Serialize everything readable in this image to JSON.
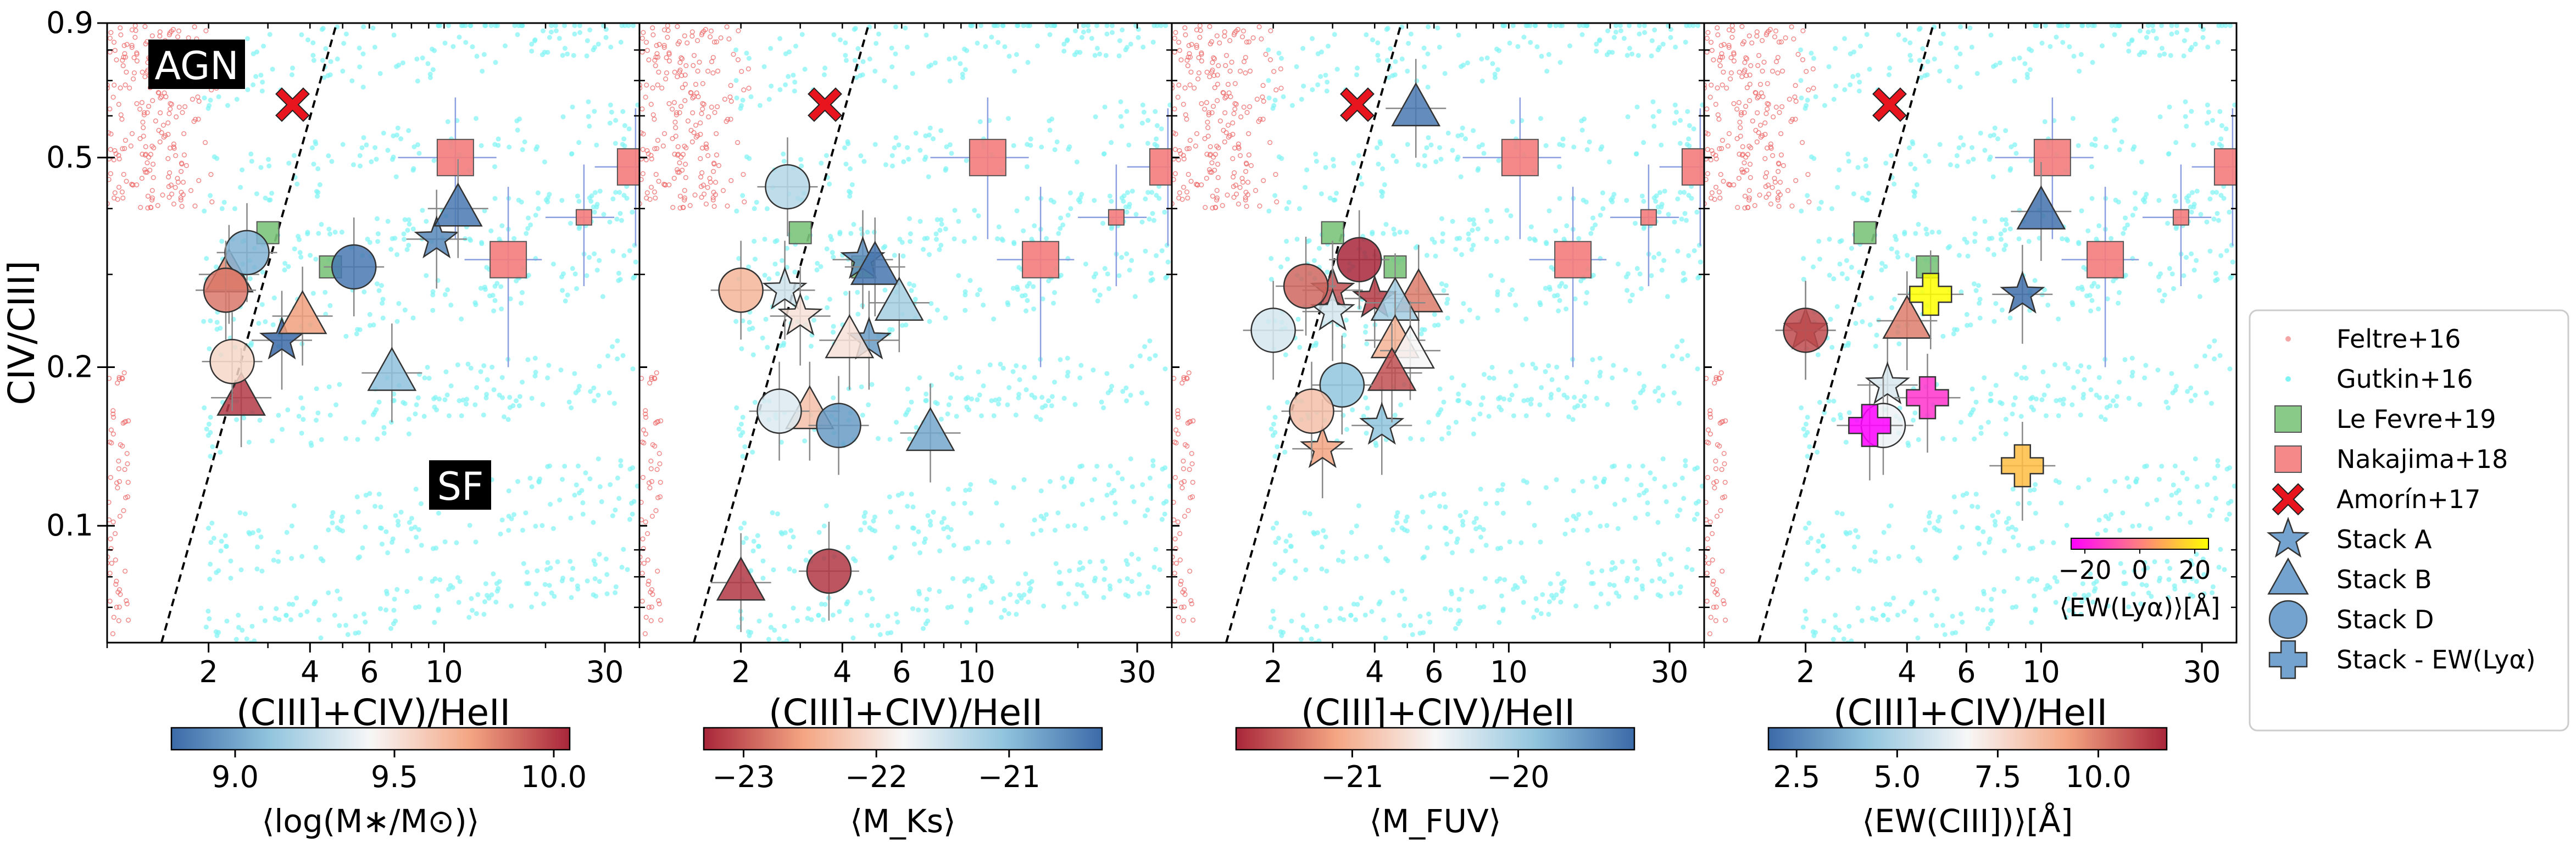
{
  "chart_data": {
    "type": "scatter",
    "figure": "Four-panel line-ratio diagnostic: CIV/CIII] vs (CIII]+CIV)/HeII, log-log",
    "xlabel": "(CIII]+CIV)/HeII",
    "ylabel": "CIV/CIII]",
    "xscale": "log",
    "yscale": "log",
    "xlim": [
      1,
      38
    ],
    "ylim": [
      0.06,
      0.9
    ],
    "x_ticks": [
      2,
      4,
      6,
      10,
      30
    ],
    "x_tick_labels": [
      "2",
      "4",
      "6",
      "10",
      "30"
    ],
    "y_ticks": [
      0.1,
      0.2,
      0.5,
      0.9
    ],
    "y_tick_labels": [
      "0.1",
      "0.2",
      "0.5",
      "0.9"
    ],
    "region_labels": {
      "agn": "AGN",
      "sf": "SF"
    },
    "divider": {
      "style": "dashed",
      "points": [
        [
          1.45,
          0.06
        ],
        [
          4.8,
          0.9
        ]
      ]
    },
    "reference": {
      "le_fevre": [
        {
          "x": 3.0,
          "y": 0.36
        },
        {
          "x": 4.6,
          "y": 0.31
        }
      ],
      "nakajima": [
        {
          "x": 10.8,
          "y": 0.5,
          "xerr": 3.5,
          "yerr": 0.15
        },
        {
          "x": 15.5,
          "y": 0.32,
          "xerr": 4.0,
          "yerr": 0.12
        },
        {
          "x": 37.0,
          "y": 0.48,
          "xerr": 9.0,
          "yerr": 0.14
        },
        {
          "x": 26.0,
          "y": 0.385,
          "xerr": 6.0,
          "yerr": 0.1
        }
      ],
      "amorin": [
        {
          "x": 3.55,
          "y": 0.63
        }
      ]
    },
    "panels": [
      {
        "colorbar": {
          "label": "⟨log(M∗/M⊙)⟩",
          "ticks": [
            "9.0",
            "9.5",
            "10.0"
          ],
          "range": [
            8.8,
            10.05
          ],
          "colormap": "RdBu_r"
        },
        "stacks": [
          {
            "marker": "star",
            "x": 9.5,
            "y": 0.35,
            "v": 8.9
          },
          {
            "marker": "star",
            "x": 3.3,
            "y": 0.225,
            "v": 8.8
          },
          {
            "marker": "triangle",
            "x": 11.0,
            "y": 0.4,
            "v": 8.85
          },
          {
            "marker": "triangle",
            "x": 2.3,
            "y": 0.3,
            "v": 9.8
          },
          {
            "marker": "triangle",
            "x": 3.8,
            "y": 0.25,
            "v": 9.75
          },
          {
            "marker": "triangle",
            "x": 7.0,
            "y": 0.195,
            "v": 9.1
          },
          {
            "marker": "triangle",
            "x": 2.5,
            "y": 0.175,
            "v": 10.0
          },
          {
            "marker": "circle",
            "x": 2.6,
            "y": 0.33,
            "v": 9.05
          },
          {
            "marker": "circle",
            "x": 5.4,
            "y": 0.31,
            "v": 8.85
          },
          {
            "marker": "circle",
            "x": 2.25,
            "y": 0.28,
            "v": 9.85
          },
          {
            "marker": "circle",
            "x": 2.35,
            "y": 0.205,
            "v": 9.55
          }
        ]
      },
      {
        "colorbar": {
          "label": "⟨M_Ks⟩",
          "ticks": [
            "−23",
            "−22",
            "−21"
          ],
          "range": [
            -23.3,
            -20.3
          ],
          "colormap": "RdBu"
        },
        "stacks": [
          {
            "marker": "star",
            "x": 4.6,
            "y": 0.32,
            "v": -20.6
          },
          {
            "marker": "star",
            "x": 2.7,
            "y": 0.28,
            "v": -21.5
          },
          {
            "marker": "star",
            "x": 3.0,
            "y": 0.25,
            "v": -22.0
          },
          {
            "marker": "star",
            "x": 4.8,
            "y": 0.225,
            "v": -20.7
          },
          {
            "marker": "triangle",
            "x": 5.0,
            "y": 0.31,
            "v": -20.4
          },
          {
            "marker": "triangle",
            "x": 5.9,
            "y": 0.265,
            "v": -21.2
          },
          {
            "marker": "triangle",
            "x": 4.2,
            "y": 0.225,
            "v": -22.0
          },
          {
            "marker": "triangle",
            "x": 3.2,
            "y": 0.165,
            "v": -22.3
          },
          {
            "marker": "triangle",
            "x": 7.3,
            "y": 0.15,
            "v": -20.8
          },
          {
            "marker": "triangle",
            "x": 2.0,
            "y": 0.078,
            "v": -23.2
          },
          {
            "marker": "circle",
            "x": 2.75,
            "y": 0.44,
            "v": -21.3
          },
          {
            "marker": "circle",
            "x": 2.0,
            "y": 0.28,
            "v": -22.4
          },
          {
            "marker": "circle",
            "x": 2.6,
            "y": 0.165,
            "v": -21.6
          },
          {
            "marker": "circle",
            "x": 3.9,
            "y": 0.155,
            "v": -20.7
          },
          {
            "marker": "circle",
            "x": 3.65,
            "y": 0.082,
            "v": -23.2
          }
        ]
      },
      {
        "colorbar": {
          "label": "⟨M_FUV⟩",
          "ticks": [
            "−21",
            "−20"
          ],
          "range": [
            -21.7,
            -19.3
          ],
          "colormap": "RdBu"
        },
        "stacks": [
          {
            "marker": "star",
            "x": 3.0,
            "y": 0.28,
            "v": -21.5
          },
          {
            "marker": "star",
            "x": 3.0,
            "y": 0.255,
            "v": -20.3
          },
          {
            "marker": "star",
            "x": 2.8,
            "y": 0.14,
            "v": -21.1
          },
          {
            "marker": "star",
            "x": 4.2,
            "y": 0.155,
            "v": -19.9
          },
          {
            "marker": "star",
            "x": 4.0,
            "y": 0.27,
            "v": -21.6
          },
          {
            "marker": "triangle",
            "x": 5.3,
            "y": 0.62,
            "v": -19.4
          },
          {
            "marker": "triangle",
            "x": 5.4,
            "y": 0.275,
            "v": -21.3
          },
          {
            "marker": "triangle",
            "x": 4.6,
            "y": 0.265,
            "v": -20.0
          },
          {
            "marker": "triangle",
            "x": 4.6,
            "y": 0.225,
            "v": -21.0
          },
          {
            "marker": "triangle",
            "x": 5.1,
            "y": 0.215,
            "v": -20.5
          },
          {
            "marker": "triangle",
            "x": 4.5,
            "y": 0.195,
            "v": -21.5
          },
          {
            "marker": "circle",
            "x": 3.6,
            "y": 0.32,
            "v": -21.7
          },
          {
            "marker": "circle",
            "x": 2.5,
            "y": 0.285,
            "v": -21.4
          },
          {
            "marker": "circle",
            "x": 2.0,
            "y": 0.235,
            "v": -20.3
          },
          {
            "marker": "circle",
            "x": 3.2,
            "y": 0.185,
            "v": -19.9
          },
          {
            "marker": "circle",
            "x": 2.6,
            "y": 0.165,
            "v": -20.9
          }
        ]
      },
      {
        "colorbar": {
          "label": "⟨EW(CIII])⟩[Å]",
          "ticks": [
            "2.5",
            "5.0",
            "7.5",
            "10.0"
          ],
          "range": [
            1.8,
            11.7
          ],
          "colormap": "RdBu_r"
        },
        "ew_lya_bar": {
          "label": "⟨EW(Lyα)⟩[Å]",
          "ticks": [
            "−20",
            "0",
            "20"
          ],
          "range": [
            -25,
            25
          ],
          "colormap": "spring"
        },
        "stacks": [
          {
            "marker": "star",
            "x": 2.0,
            "y": 0.235,
            "v": 11.0
          },
          {
            "marker": "star",
            "x": 8.8,
            "y": 0.275,
            "v": 1.9
          },
          {
            "marker": "star",
            "x": 3.5,
            "y": 0.185,
            "v": 6.0
          },
          {
            "marker": "triangle",
            "x": 10.0,
            "y": 0.395,
            "v": 2.0
          },
          {
            "marker": "triangle",
            "x": 4.0,
            "y": 0.245,
            "v": 10.0
          },
          {
            "marker": "circle",
            "x": 2.0,
            "y": 0.235,
            "v": 11.0
          },
          {
            "marker": "circle",
            "x": 3.4,
            "y": 0.155,
            "v": 6.5
          }
        ],
        "lya_stacks": [
          {
            "x": 4.7,
            "y": 0.275,
            "v": 25
          },
          {
            "x": 4.6,
            "y": 0.175,
            "v": -15
          },
          {
            "x": 3.1,
            "y": 0.155,
            "v": -25
          },
          {
            "x": 8.8,
            "y": 0.13,
            "v": 12
          }
        ]
      }
    ],
    "legend": [
      {
        "label": "Feltre+16",
        "marker": "dot",
        "color": "#f4a6a6"
      },
      {
        "label": "Gutkin+16",
        "marker": "dot",
        "color": "#7ff4f4"
      },
      {
        "label": "Le Fevre+19",
        "marker": "square",
        "color": "#7cc47c"
      },
      {
        "label": "Nakajima+18",
        "marker": "square",
        "color": "#f47c7c"
      },
      {
        "label": "Amorín+17",
        "marker": "x",
        "color": "#e8141e"
      },
      {
        "label": "Stack A",
        "marker": "star",
        "color": "#5b93c6"
      },
      {
        "label": "Stack B",
        "marker": "triangle",
        "color": "#5b93c6"
      },
      {
        "label": "Stack D",
        "marker": "circle",
        "color": "#5b93c6"
      },
      {
        "label": "Stack - EW(Lyα)",
        "marker": "plus",
        "color": "#5b93c6"
      }
    ]
  }
}
